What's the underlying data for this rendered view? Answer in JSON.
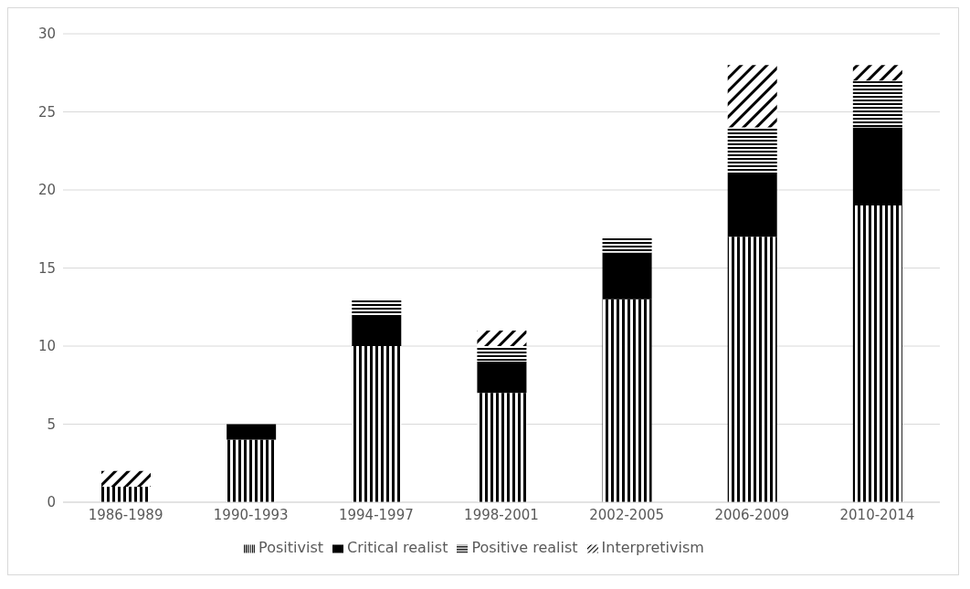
{
  "chart_data": {
    "type": "bar",
    "stacked": true,
    "categories": [
      "1986-1989",
      "1990-1993",
      "1994-1997",
      "1998-2001",
      "2002-2005",
      "2006-2009",
      "2010-2014"
    ],
    "series": [
      {
        "name": "Positivist",
        "color": "#000000",
        "values": [
          1,
          4,
          10,
          7,
          13,
          17,
          19
        ]
      },
      {
        "name": "Critical realist",
        "color": "#000000",
        "values": [
          0,
          1,
          2,
          2,
          3,
          4,
          5
        ]
      },
      {
        "name": "Positive realist",
        "color": "#000000",
        "values": [
          0,
          0,
          1,
          1,
          1,
          3,
          3
        ]
      },
      {
        "name": "Interpretivism",
        "color": "#000000",
        "values": [
          1,
          0,
          0,
          1,
          0,
          4,
          1
        ]
      }
    ],
    "ylim": [
      0,
      30
    ],
    "yticks": [
      0,
      5,
      10,
      15,
      20,
      25,
      30
    ],
    "grid": "y",
    "legend": "bottom"
  }
}
